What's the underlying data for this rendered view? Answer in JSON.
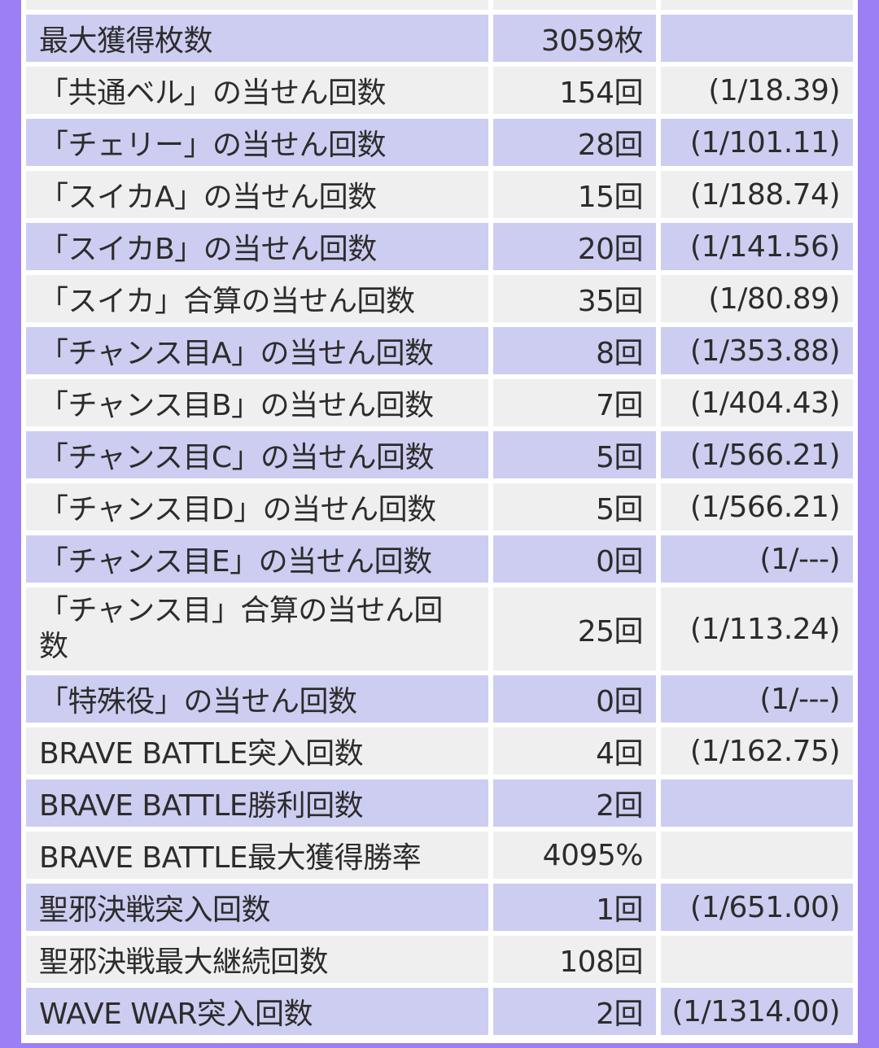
{
  "rows": [
    {
      "label": "",
      "count": "",
      "ratio": "",
      "shade": "even"
    },
    {
      "label": "最大獲得枚数",
      "count": "3059枚",
      "ratio": "",
      "shade": "odd"
    },
    {
      "label": "「共通ベル」の当せん回数",
      "count": "154回",
      "ratio": "(1/18.39)",
      "shade": "even"
    },
    {
      "label": "「チェリー」の当せん回数",
      "count": "28回",
      "ratio": "(1/101.11)",
      "shade": "odd"
    },
    {
      "label": "「スイカA」の当せん回数",
      "count": "15回",
      "ratio": "(1/188.74)",
      "shade": "even"
    },
    {
      "label": "「スイカB」の当せん回数",
      "count": "20回",
      "ratio": "(1/141.56)",
      "shade": "odd"
    },
    {
      "label": "「スイカ」合算の当せん回数",
      "count": "35回",
      "ratio": "(1/80.89)",
      "shade": "even"
    },
    {
      "label": "「チャンス目A」の当せん回数",
      "count": "8回",
      "ratio": "(1/353.88)",
      "shade": "odd"
    },
    {
      "label": "「チャンス目B」の当せん回数",
      "count": "7回",
      "ratio": "(1/404.43)",
      "shade": "even"
    },
    {
      "label": "「チャンス目C」の当せん回数",
      "count": "5回",
      "ratio": "(1/566.21)",
      "shade": "odd"
    },
    {
      "label": "「チャンス目D」の当せん回数",
      "count": "5回",
      "ratio": "(1/566.21)",
      "shade": "even"
    },
    {
      "label": "「チャンス目E」の当せん回数",
      "count": "0回",
      "ratio": "(1/---)",
      "shade": "odd"
    },
    {
      "label": "「チャンス目」合算の当せん回数",
      "count": "25回",
      "ratio": "(1/113.24)",
      "shade": "even",
      "tall": true
    },
    {
      "label": "「特殊役」の当せん回数",
      "count": "0回",
      "ratio": "(1/---)",
      "shade": "odd"
    },
    {
      "label": "BRAVE BATTLE突入回数",
      "count": "4回",
      "ratio": "(1/162.75)",
      "shade": "even"
    },
    {
      "label": "BRAVE BATTLE勝利回数",
      "count": "2回",
      "ratio": "",
      "shade": "odd"
    },
    {
      "label": "BRAVE BATTLE最大獲得勝率",
      "count": "4095%",
      "ratio": "",
      "shade": "even"
    },
    {
      "label": "聖邪決戦突入回数",
      "count": "1回",
      "ratio": "(1/651.00)",
      "shade": "odd"
    },
    {
      "label": "聖邪決戦最大継続回数",
      "count": "108回",
      "ratio": "",
      "shade": "even"
    },
    {
      "label": "WAVE WAR突入回数",
      "count": "2回",
      "ratio": "(1/1314.00)",
      "shade": "odd"
    }
  ],
  "colors": {
    "border": "#9d7ff5",
    "odd_row": "#cdcdf1",
    "even_row": "#efefef",
    "text": "#2c2c2c"
  }
}
